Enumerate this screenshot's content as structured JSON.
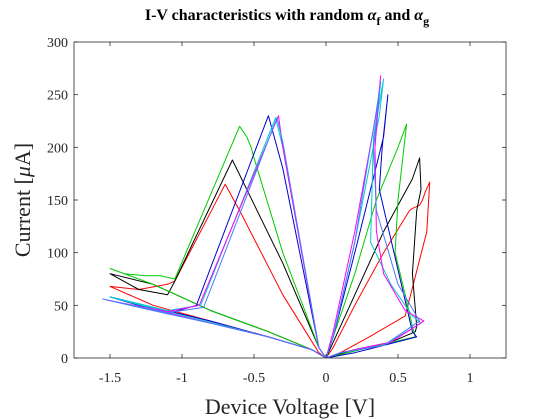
{
  "chart_data": {
    "type": "line",
    "title": "I-V characteristics with random",
    "title_sym1": "α",
    "title_sub1": "f",
    "title_and": "and",
    "title_sym2": "α",
    "title_sub2": "g",
    "xlabel": "Device Voltage [V]",
    "ylabel_pre": "Current [",
    "ylabel_mu": "μ",
    "ylabel_post": "A]",
    "xlim": [
      -1.75,
      1.25
    ],
    "ylim": [
      0,
      300
    ],
    "xticks": [
      -1.5,
      -1,
      -0.5,
      0,
      0.5,
      1
    ],
    "xtick_labels": [
      "-1.5",
      "-1",
      "-0.5",
      "0",
      "0.5",
      "1"
    ],
    "yticks": [
      0,
      50,
      100,
      150,
      200,
      250,
      300
    ],
    "ytick_labels": [
      "0",
      "50",
      "100",
      "150",
      "200",
      "250",
      "300"
    ],
    "grid": false,
    "series": [
      {
        "color": "#ff0000",
        "x": [
          0,
          0.05,
          0.2,
          0.4,
          0.58,
          0.6,
          0.65,
          0.67,
          0.69,
          0.72,
          0.7,
          0.55,
          0.3,
          0.1,
          0,
          -0.05,
          -0.3,
          -0.6,
          -0.7,
          -1.05,
          -1.1,
          -1.3,
          -1.5,
          -1.2,
          -0.8,
          -0.4,
          -0.1,
          0
        ],
        "y": [
          0,
          10,
          50,
          100,
          140,
          142,
          145,
          150,
          158,
          167,
          120,
          40,
          20,
          5,
          0,
          5,
          60,
          140,
          165,
          73,
          70,
          65,
          68,
          50,
          35,
          20,
          8,
          0
        ]
      },
      {
        "color": "#000000",
        "x": [
          0,
          0.05,
          0.2,
          0.4,
          0.6,
          0.65,
          0.66,
          0.63,
          0.6,
          0.63,
          0.62,
          0.45,
          0.2,
          0,
          -0.05,
          -0.3,
          -0.65,
          -1.05,
          -1.1,
          -1.3,
          -1.5,
          -1.2,
          -0.8,
          -0.4,
          -0.1,
          0
        ],
        "y": [
          0,
          15,
          60,
          120,
          170,
          190,
          160,
          140,
          80,
          30,
          25,
          15,
          8,
          0,
          10,
          90,
          188,
          73,
          60,
          65,
          80,
          70,
          45,
          25,
          8,
          0
        ]
      },
      {
        "color": "#00cc00",
        "x": [
          0,
          0.05,
          0.2,
          0.35,
          0.5,
          0.56,
          0.5,
          0.48,
          0.55,
          0.6,
          0.62,
          0.3,
          0,
          -0.05,
          -0.3,
          -0.5,
          -0.52,
          -0.55,
          -0.6,
          -1.05,
          -1.15,
          -1.25,
          -1.4,
          -1.5,
          -1.2,
          -0.8,
          -0.4,
          -0.1,
          0
        ],
        "y": [
          0,
          20,
          80,
          150,
          200,
          222,
          150,
          100,
          60,
          30,
          20,
          10,
          0,
          10,
          100,
          190,
          200,
          210,
          220,
          75,
          78,
          78,
          80,
          85,
          70,
          45,
          25,
          8,
          0
        ]
      },
      {
        "color": "#0000cc",
        "x": [
          0,
          0.05,
          0.2,
          0.4,
          0.43,
          0.39,
          0.37,
          0.6,
          0.63,
          0.4,
          0.2,
          0,
          -0.05,
          -0.3,
          -0.4,
          -0.9,
          -1.1,
          -1.5,
          -1.2,
          -0.8,
          -0.4,
          -0.1,
          0
        ],
        "y": [
          0,
          20,
          100,
          210,
          250,
          200,
          160,
          25,
          20,
          12,
          5,
          0,
          10,
          180,
          230,
          50,
          42,
          58,
          48,
          35,
          20,
          8,
          0
        ]
      },
      {
        "color": "#00cccc",
        "x": [
          0,
          0.05,
          0.2,
          0.37,
          0.4,
          0.33,
          0.31,
          0.45,
          0.6,
          0.66,
          0.4,
          0.1,
          0,
          -0.05,
          -0.3,
          -0.35,
          -0.87,
          -1.1,
          -1.5,
          -1.2,
          -0.8,
          -0.4,
          -0.1,
          0
        ],
        "y": [
          0,
          20,
          110,
          230,
          265,
          210,
          110,
          70,
          40,
          33,
          12,
          5,
          0,
          10,
          200,
          228,
          50,
          45,
          58,
          47,
          34,
          20,
          8,
          0
        ]
      },
      {
        "color": "#ff00ff",
        "x": [
          0,
          0.05,
          0.2,
          0.36,
          0.38,
          0.34,
          0.35,
          0.4,
          0.55,
          0.68,
          0.45,
          0.1,
          0,
          -0.05,
          -0.3,
          -0.33,
          -0.88,
          -1.1,
          -1.52,
          -1.2,
          -0.8,
          -0.4,
          -0.1,
          0
        ],
        "y": [
          0,
          25,
          120,
          240,
          268,
          200,
          120,
          80,
          45,
          35,
          15,
          5,
          0,
          10,
          200,
          230,
          50,
          44,
          55,
          46,
          33,
          20,
          8,
          0
        ]
      },
      {
        "color": "#4a7aff",
        "x": [
          0,
          0.05,
          0.2,
          0.35,
          0.38,
          0.33,
          0.35,
          0.5,
          0.65,
          0.4,
          0.1,
          0,
          -0.05,
          -0.3,
          -0.34,
          -0.85,
          -1.1,
          -1.55,
          -1.2,
          -0.8,
          -0.4,
          -0.1,
          0
        ],
        "y": [
          0,
          20,
          110,
          235,
          262,
          200,
          140,
          70,
          35,
          12,
          5,
          0,
          10,
          205,
          228,
          48,
          43,
          56,
          45,
          33,
          20,
          8,
          0
        ]
      }
    ]
  }
}
